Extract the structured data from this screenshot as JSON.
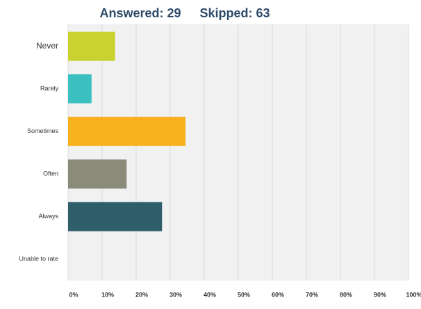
{
  "chart_data": {
    "type": "bar",
    "orientation": "horizontal",
    "annotations": [
      "Answered: 29",
      "Skipped: 63"
    ],
    "categories": [
      "Never",
      "Rarely",
      "Sometimes",
      "Often",
      "Always",
      "Unable to rate"
    ],
    "values": [
      13.8,
      6.9,
      34.5,
      17.2,
      27.6,
      0
    ],
    "colors": [
      "#c9d22e",
      "#3bbfbf",
      "#f7b11e",
      "#8b8b7a",
      "#2f5e6b",
      "#999999"
    ],
    "xlim": [
      0,
      100
    ],
    "xticks": [
      {
        "value": 0,
        "label": "0%"
      },
      {
        "value": 10,
        "label": "10%"
      },
      {
        "value": 20,
        "label": "20%"
      },
      {
        "value": 30,
        "label": "30%"
      },
      {
        "value": 40,
        "label": "40%"
      },
      {
        "value": 50,
        "label": "50%"
      },
      {
        "value": 60,
        "label": "60%"
      },
      {
        "value": 70,
        "label": "70%"
      },
      {
        "value": 80,
        "label": "80%"
      },
      {
        "value": 90,
        "label": "90%"
      },
      {
        "value": 100,
        "label": "100%"
      }
    ],
    "grid": true
  }
}
